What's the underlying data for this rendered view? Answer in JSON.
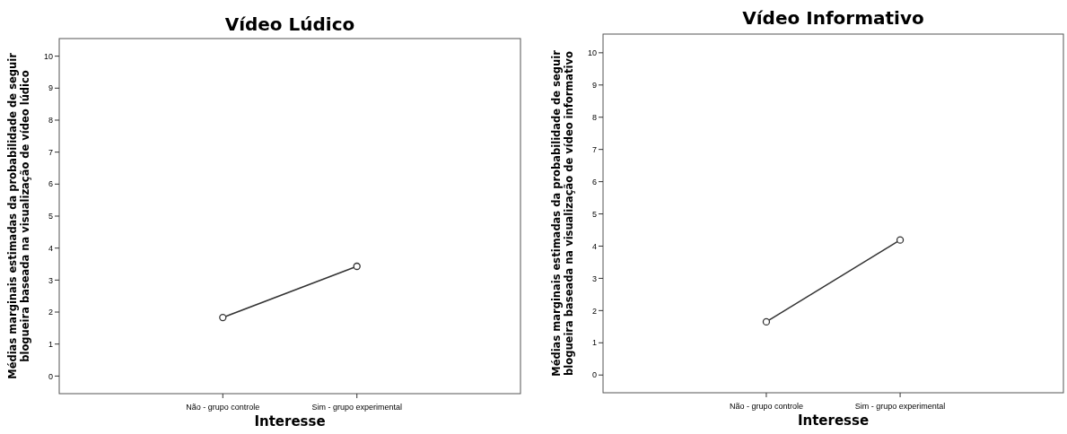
{
  "chart_data": [
    {
      "type": "line",
      "title": "Vídeo Lúdico",
      "xlabel": "Interesse",
      "ylabel": "Médias marginais estimadas da probabilidade de seguir\nblogueira baseada na visualização de vídeo lúdico",
      "categories": [
        "Não - grupo controle",
        "Sim - grupo experimental"
      ],
      "series": [
        {
          "color": "#333333",
          "values": [
            1.83,
            3.43
          ]
        }
      ],
      "ylim": [
        -0.55,
        10.55
      ],
      "yticks": [
        0,
        1,
        2,
        3,
        4,
        5,
        6,
        7,
        8,
        9,
        10
      ],
      "marker": "circle",
      "line_style": "solid"
    },
    {
      "type": "line",
      "title": "Vídeo Informativo",
      "xlabel": "Interesse",
      "ylabel": "Médias marginais estimadas da probabilidade de seguir\nblogueira baseada na visualização de vídeo informativo",
      "categories": [
        "Não - grupo controle",
        "Sim - grupo experimental"
      ],
      "series": [
        {
          "color": "#333333",
          "values": [
            1.65,
            4.19
          ]
        }
      ],
      "ylim": [
        -0.55,
        10.58
      ],
      "yticks": [
        0,
        1,
        2,
        3,
        4,
        5,
        6,
        7,
        8,
        9,
        10
      ],
      "marker": "circle",
      "line_style": "solid"
    }
  ]
}
